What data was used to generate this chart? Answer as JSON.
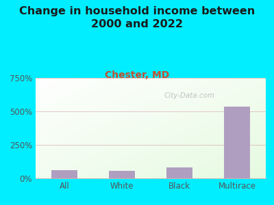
{
  "title": "Change in household income between\n2000 and 2022",
  "subtitle": "Chester, MD",
  "categories": [
    "All",
    "White",
    "Black",
    "Multirace"
  ],
  "values": [
    60,
    55,
    80,
    535
  ],
  "bar_color": "#b09ec0",
  "title_fontsize": 11.5,
  "subtitle_fontsize": 10,
  "subtitle_color": "#c05030",
  "title_color": "#1a1a1a",
  "tick_label_color": "#555555",
  "background_outer": "#00eeff",
  "gridline_color": "#ddb8b8",
  "ylim": [
    0,
    750
  ],
  "yticks": [
    0,
    250,
    500,
    750
  ],
  "ytick_labels": [
    "0%",
    "250%",
    "500%",
    "750%"
  ],
  "watermark": "City-Data.com",
  "watermark_color": "#aaaaaa"
}
